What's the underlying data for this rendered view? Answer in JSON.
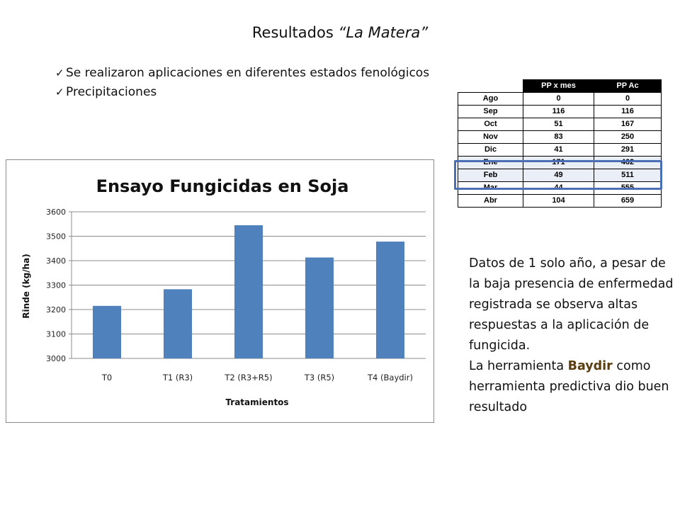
{
  "title": {
    "prefix": "Resultados ",
    "italic": "“La Matera”"
  },
  "bullets": [
    "Se realizaron aplicaciones en diferentes estados fenológicos",
    "Precipitaciones"
  ],
  "icons": {
    "bullet": "checkmark-icon"
  },
  "rain_table": {
    "headers": [
      "",
      "PP x mes",
      "PP Ac"
    ],
    "rows": [
      {
        "month": "Ago",
        "pp_mes": "0",
        "pp_ac": "0"
      },
      {
        "month": "Sep",
        "pp_mes": "116",
        "pp_ac": "116"
      },
      {
        "month": "Oct",
        "pp_mes": "51",
        "pp_ac": "167"
      },
      {
        "month": "Nov",
        "pp_mes": "83",
        "pp_ac": "250"
      },
      {
        "month": "Dic",
        "pp_mes": "41",
        "pp_ac": "291"
      },
      {
        "month": "Ene",
        "pp_mes": "171",
        "pp_ac": "462"
      },
      {
        "month": "Feb",
        "pp_mes": "49",
        "pp_ac": "511"
      },
      {
        "month": "Mar",
        "pp_mes": "44",
        "pp_ac": "555"
      },
      {
        "month": "Abr",
        "pp_mes": "104",
        "pp_ac": "659"
      }
    ],
    "highlighted_months": [
      "Ene",
      "Feb"
    ],
    "highlight_color": "#4a6fb4"
  },
  "chart_data": {
    "type": "bar",
    "title": "Ensayo Fungicidas en Soja",
    "xlabel": "Tratamientos",
    "ylabel": "Rinde (kg/ha)",
    "categories": [
      "T0",
      "T1 (R3)",
      "T2 (R3+R5)",
      "T3 (R5)",
      "T4 (Baydir)"
    ],
    "values": [
      3215,
      3283,
      3545,
      3413,
      3478
    ],
    "ylim": [
      3000,
      3600
    ],
    "yticks": [
      "3000",
      "3100",
      "3200",
      "3300",
      "3400",
      "3500",
      "3600"
    ],
    "grid": true,
    "bar_color": "#4f81bd"
  },
  "note": {
    "text1": "Datos de 1 solo año, a pesar de la baja presencia de enfermedad registrada se observa altas respuestas a la aplicación de fungicida.",
    "text2_pre": "La herramienta ",
    "text2_kw": "Baydir",
    "text2_post": " como herramienta predictiva dio buen resultado"
  }
}
